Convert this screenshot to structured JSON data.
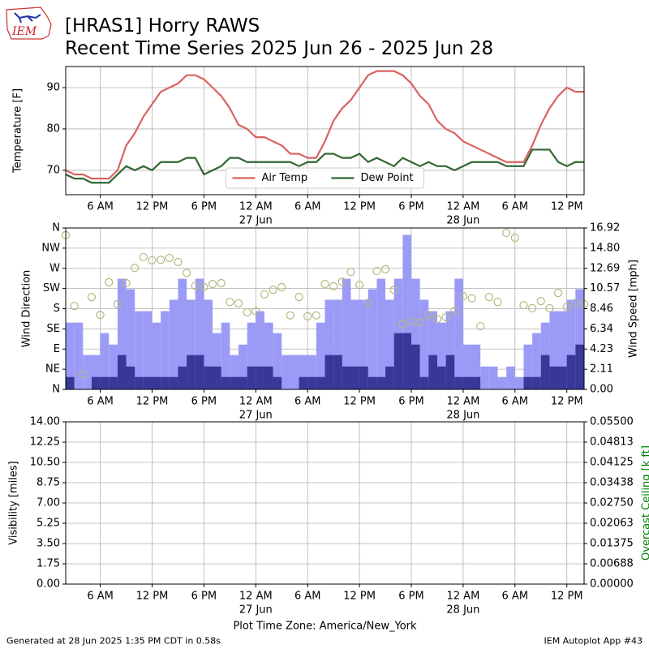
{
  "header": {
    "title": "[HRAS1] Horry RAWS",
    "subtitle": "Recent Time Series 2025 Jun 26 - 2025 Jun 28"
  },
  "logo": "IEM",
  "footer": {
    "left": "Generated at 28 Jun 2025 1:35 PM CDT in 0.58s",
    "right": "IEM Autoplot App #43"
  },
  "chart_data": [
    {
      "type": "line",
      "ylabel": "Temperature [F]",
      "x": [
        2,
        3,
        4,
        5,
        6,
        7,
        8,
        9,
        10,
        11,
        12,
        13,
        14,
        15,
        16,
        17,
        18,
        19,
        20,
        21,
        22,
        23,
        24,
        25,
        26,
        27,
        28,
        29,
        30,
        31,
        32,
        33,
        34,
        35,
        36,
        37,
        38,
        39,
        40,
        41,
        42,
        43,
        44,
        45,
        46,
        47,
        48,
        49,
        50,
        51,
        52,
        53,
        54,
        55,
        56,
        57,
        58,
        59,
        60,
        61,
        62
      ],
      "series": [
        {
          "name": "Air Temp",
          "color": "#da6262",
          "values": [
            70,
            69,
            69,
            68,
            68,
            68,
            70,
            76,
            79,
            83,
            86,
            89,
            90,
            91,
            93,
            93,
            92,
            90,
            88,
            85,
            81,
            80,
            78,
            78,
            77,
            76,
            74,
            74,
            73,
            73,
            77,
            82,
            85,
            87,
            90,
            93,
            94,
            94,
            94,
            93,
            91,
            88,
            86,
            82,
            80,
            79,
            77,
            76,
            75,
            74,
            73,
            72,
            72,
            72,
            76,
            81,
            85,
            88,
            90,
            89,
            89
          ]
        },
        {
          "name": "Dew Point",
          "color": "#336633",
          "values": [
            69,
            68,
            68,
            67,
            67,
            67,
            69,
            71,
            70,
            71,
            70,
            72,
            72,
            72,
            73,
            73,
            69,
            70,
            71,
            73,
            73,
            72,
            72,
            72,
            72,
            72,
            72,
            71,
            72,
            72,
            74,
            74,
            73,
            73,
            74,
            72,
            73,
            72,
            71,
            73,
            72,
            71,
            72,
            71,
            71,
            70,
            71,
            72,
            72,
            72,
            72,
            71,
            71,
            71,
            75,
            75,
            75,
            72,
            71,
            72,
            72
          ]
        }
      ],
      "xlim": [
        2,
        62
      ],
      "xticks": [
        {
          "value": 6,
          "label": "6 AM"
        },
        {
          "value": 12,
          "label": "12 PM"
        },
        {
          "value": 18,
          "label": "6 PM"
        },
        {
          "value": 24,
          "label": "12 AM"
        },
        {
          "value": 30,
          "label": "6 AM"
        },
        {
          "value": 36,
          "label": "12 PM"
        },
        {
          "value": 42,
          "label": "6 PM"
        },
        {
          "value": 48,
          "label": "12 AM"
        },
        {
          "value": 54,
          "label": "6 AM"
        },
        {
          "value": 60,
          "label": "12 PM"
        }
      ],
      "xtick_sublabels": [
        {
          "value": 24,
          "label": "27 Jun"
        },
        {
          "value": 48,
          "label": "28 Jun"
        }
      ],
      "ylim": [
        64.1,
        95.1
      ],
      "yticks": [
        70,
        80,
        90
      ],
      "grid": true,
      "legend": "lower center"
    },
    {
      "type": "combo",
      "ylabel": "Wind Direction",
      "y2label": "Wind Speed [mph]",
      "x": [
        2,
        3,
        4,
        5,
        6,
        7,
        8,
        9,
        10,
        11,
        12,
        13,
        14,
        15,
        16,
        17,
        18,
        19,
        20,
        21,
        22,
        23,
        24,
        25,
        26,
        27,
        28,
        29,
        30,
        31,
        32,
        33,
        34,
        35,
        36,
        37,
        38,
        39,
        40,
        41,
        42,
        43,
        44,
        45,
        46,
        47,
        48,
        49,
        50,
        51,
        52,
        53,
        54,
        55,
        56,
        57,
        58,
        59,
        60,
        61,
        62
      ],
      "series": [
        {
          "type": "bar",
          "axis": "y2",
          "color": "#9b9bf7",
          "values": [
            7,
            7,
            3.6,
            3.6,
            5.9,
            4.7,
            11.6,
            10.5,
            8.2,
            8.2,
            7,
            8.2,
            9.4,
            11.6,
            9.4,
            11.6,
            9.4,
            5.9,
            7,
            3.6,
            4.7,
            7,
            8.2,
            7,
            5.9,
            3.6,
            3.6,
            3.6,
            3.6,
            7,
            9.4,
            9.4,
            11.6,
            9.4,
            9.4,
            10.5,
            11.6,
            9.4,
            11.6,
            16.2,
            11.6,
            9.4,
            8.2,
            7,
            8.2,
            11.6,
            4.7,
            4.7,
            2.4,
            2.4,
            1.3,
            2.4,
            1.3,
            4.7,
            5.9,
            7,
            8.2,
            8.2,
            9.4,
            10.5,
            null
          ]
        },
        {
          "type": "bar",
          "axis": "y2",
          "color": "#383898",
          "values": [
            1.3,
            0,
            0,
            1.3,
            1.3,
            1.3,
            3.6,
            2.4,
            1.3,
            1.3,
            1.3,
            1.3,
            1.3,
            2.4,
            3.6,
            3.6,
            2.4,
            2.4,
            1.3,
            1.3,
            1.3,
            2.4,
            2.4,
            2.4,
            1.3,
            0,
            0,
            1.3,
            1.3,
            1.3,
            3.6,
            3.6,
            2.4,
            2.4,
            2.4,
            1.3,
            1.3,
            2.4,
            5.9,
            5.9,
            4.7,
            1.3,
            3.6,
            2.4,
            3.6,
            1.3,
            1.3,
            1.3,
            0,
            0,
            0,
            0,
            0,
            1.3,
            1.3,
            3.6,
            2.4,
            2.4,
            3.6,
            4.7,
            null
          ]
        },
        {
          "type": "scatter",
          "axis": "y",
          "color": "#b5b87f",
          "values": [
            344,
            186,
            34,
            206,
            166,
            239,
            190,
            237,
            271,
            295,
            288,
            289,
            293,
            284,
            260,
            231,
            228,
            235,
            237,
            195,
            192,
            172,
            174,
            212,
            222,
            228,
            165,
            206,
            163,
            165,
            235,
            230,
            240,
            262,
            233,
            193,
            264,
            268,
            222,
            145,
            152,
            150,
            166,
            157,
            161,
            175,
            208,
            203,
            141,
            206,
            195,
            349,
            338,
            188,
            181,
            197,
            181,
            215,
            184,
            193,
            190
          ]
        }
      ],
      "xlim": [
        2,
        62
      ],
      "xticks": [
        {
          "value": 6,
          "label": "6 AM"
        },
        {
          "value": 12,
          "label": "12 PM"
        },
        {
          "value": 18,
          "label": "6 PM"
        },
        {
          "value": 24,
          "label": "12 AM"
        },
        {
          "value": 30,
          "label": "6 AM"
        },
        {
          "value": 36,
          "label": "12 PM"
        },
        {
          "value": 42,
          "label": "6 PM"
        },
        {
          "value": 48,
          "label": "12 AM"
        },
        {
          "value": 54,
          "label": "6 AM"
        },
        {
          "value": 60,
          "label": "12 PM"
        }
      ],
      "xtick_sublabels": [
        {
          "value": 24,
          "label": "27 Jun"
        },
        {
          "value": 48,
          "label": "28 Jun"
        }
      ],
      "ylim": [
        0,
        360
      ],
      "yticks": [
        {
          "value": 0,
          "label": "N"
        },
        {
          "value": 45,
          "label": "NE"
        },
        {
          "value": 90,
          "label": "E"
        },
        {
          "value": 135,
          "label": "SE"
        },
        {
          "value": 180,
          "label": "S"
        },
        {
          "value": 225,
          "label": "SW"
        },
        {
          "value": 270,
          "label": "W"
        },
        {
          "value": 315,
          "label": "NW"
        },
        {
          "value": 360,
          "label": "N"
        }
      ],
      "y2lim": [
        0,
        16.92
      ],
      "y2ticks": [
        {
          "value": 0,
          "label": "0.00"
        },
        {
          "value": 2.11,
          "label": "2.11"
        },
        {
          "value": 4.23,
          "label": "4.23"
        },
        {
          "value": 6.34,
          "label": "6.34"
        },
        {
          "value": 8.46,
          "label": "8.46"
        },
        {
          "value": 10.57,
          "label": "10.57"
        },
        {
          "value": 12.69,
          "label": "12.69"
        },
        {
          "value": 14.8,
          "label": "14.80"
        },
        {
          "value": 16.92,
          "label": "16.92"
        }
      ],
      "grid": true
    },
    {
      "type": "line",
      "ylabel": "Visibility [miles]",
      "y2label": "Overcast Ceiling [k ft]",
      "y2label_color": "#008000",
      "xlabel": "Plot Time Zone: America/New_York",
      "x": [],
      "series": [],
      "xlim": [
        2,
        62
      ],
      "xticks": [
        {
          "value": 6,
          "label": "6 AM"
        },
        {
          "value": 12,
          "label": "12 PM"
        },
        {
          "value": 18,
          "label": "6 PM"
        },
        {
          "value": 24,
          "label": "12 AM"
        },
        {
          "value": 30,
          "label": "6 AM"
        },
        {
          "value": 36,
          "label": "12 PM"
        },
        {
          "value": 42,
          "label": "6 PM"
        },
        {
          "value": 48,
          "label": "12 AM"
        },
        {
          "value": 54,
          "label": "6 AM"
        },
        {
          "value": 60,
          "label": "12 PM"
        }
      ],
      "xtick_sublabels": [
        {
          "value": 24,
          "label": "27 Jun"
        },
        {
          "value": 48,
          "label": "28 Jun"
        }
      ],
      "ylim": [
        0,
        14
      ],
      "yticks": [
        {
          "value": 0,
          "label": "0.00"
        },
        {
          "value": 1.75,
          "label": "1.75"
        },
        {
          "value": 3.5,
          "label": "3.50"
        },
        {
          "value": 5.25,
          "label": "5.25"
        },
        {
          "value": 7,
          "label": "7.00"
        },
        {
          "value": 8.75,
          "label": "8.75"
        },
        {
          "value": 10.5,
          "label": "10.50"
        },
        {
          "value": 12.25,
          "label": "12.25"
        },
        {
          "value": 14,
          "label": "14.00"
        }
      ],
      "y2lim": [
        0,
        0.055
      ],
      "y2ticks": [
        {
          "value": 0,
          "label": "0.00000"
        },
        {
          "value": 0.006875,
          "label": "0.00688"
        },
        {
          "value": 0.01375,
          "label": "0.01375"
        },
        {
          "value": 0.020625,
          "label": "0.02063"
        },
        {
          "value": 0.0275,
          "label": "0.02750"
        },
        {
          "value": 0.034375,
          "label": "0.03438"
        },
        {
          "value": 0.04125,
          "label": "0.04125"
        },
        {
          "value": 0.048125,
          "label": "0.04813"
        },
        {
          "value": 0.055,
          "label": "0.05500"
        }
      ],
      "grid": true
    }
  ]
}
